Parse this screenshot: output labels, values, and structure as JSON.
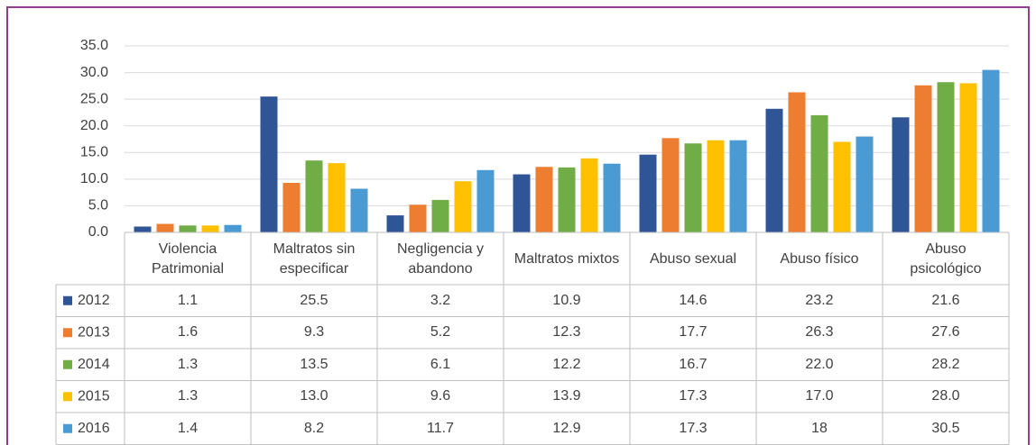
{
  "chart_data": {
    "type": "bar",
    "categories": [
      "Violencia Patrimonial",
      "Maltratos sin especificar",
      "Negligencia y abandono",
      "Maltratos mixtos",
      "Abuso sexual",
      "Abuso físico",
      "Abuso psicológico"
    ],
    "series": [
      {
        "name": "2012",
        "color": "#2f5597",
        "values": [
          1.1,
          25.5,
          3.2,
          10.9,
          14.6,
          23.2,
          21.6
        ],
        "value_labels": [
          "1.1",
          "25.5",
          "3.2",
          "10.9",
          "14.6",
          "23.2",
          "21.6"
        ]
      },
      {
        "name": "2013",
        "color": "#ed7d31",
        "values": [
          1.6,
          9.3,
          5.2,
          12.3,
          17.7,
          26.3,
          27.6
        ],
        "value_labels": [
          "1.6",
          "9.3",
          "5.2",
          "12.3",
          "17.7",
          "26.3",
          "27.6"
        ]
      },
      {
        "name": "2014",
        "color": "#70ad47",
        "values": [
          1.3,
          13.5,
          6.1,
          12.2,
          16.7,
          22.0,
          28.2
        ],
        "value_labels": [
          "1.3",
          "13.5",
          "6.1",
          "12.2",
          "16.7",
          "22.0",
          "28.2"
        ]
      },
      {
        "name": "2015",
        "color": "#ffc000",
        "values": [
          1.3,
          13.0,
          9.6,
          13.9,
          17.3,
          17.0,
          28.0
        ],
        "value_labels": [
          "1.3",
          "13.0",
          "9.6",
          "13.9",
          "17.3",
          "17.0",
          "28.0"
        ]
      },
      {
        "name": "2016",
        "color": "#4a9bd4",
        "values": [
          1.4,
          8.2,
          11.7,
          12.9,
          17.3,
          18,
          30.5
        ],
        "value_labels": [
          "1.4",
          "8.2",
          "11.7",
          "12.9",
          "17.3",
          "18",
          "30.5"
        ]
      }
    ],
    "ylim": [
      0,
      35
    ],
    "yticks": [
      {
        "value": 0,
        "label": "0.0"
      },
      {
        "value": 5,
        "label": "5.0"
      },
      {
        "value": 10,
        "label": "10.0"
      },
      {
        "value": 15,
        "label": "15.0"
      },
      {
        "value": 20,
        "label": "20.0"
      },
      {
        "value": 25,
        "label": "25.0"
      },
      {
        "value": 30,
        "label": "30.0"
      },
      {
        "value": 35,
        "label": "35.0"
      }
    ],
    "grid": true
  }
}
